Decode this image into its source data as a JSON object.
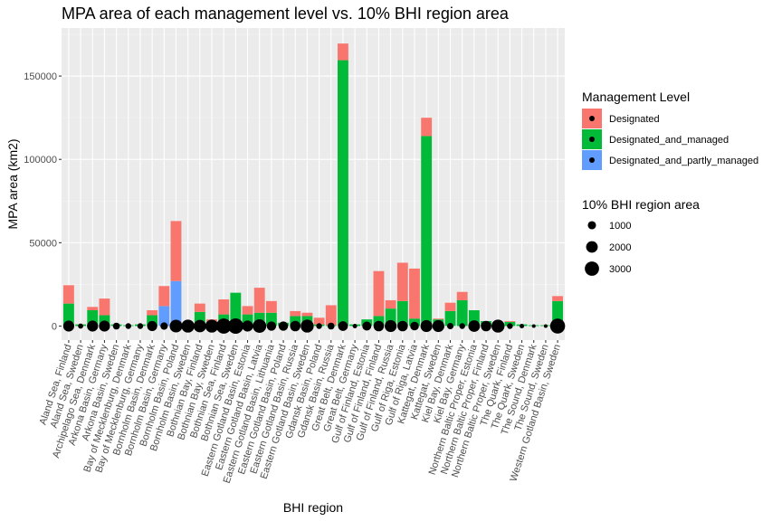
{
  "chart_data": {
    "type": "bar",
    "title": "MPA area of each management level vs. 10% BHI region area",
    "xlabel": "BHI region",
    "ylabel": "MPA area (km2)",
    "ylim": [
      0,
      175000
    ],
    "y_ticks": [
      0,
      50000,
      100000,
      150000
    ],
    "grid": true,
    "stacked": true,
    "legend_position": "right",
    "categories": [
      "Aland Sea, Finland",
      "Aland Sea, Sweden",
      "Archipelago Sea, Denmark",
      "Arkona Basin, Germany",
      "Arkona Basin, Sweden",
      "Bay of Mecklenburg, Denmark",
      "Bay of Mecklenburg, Germany",
      "Bornholm Basin, Denmark",
      "Bornholm Basin, Germany",
      "Bornholm Basin, Poland",
      "Bornholm Basin, Sweden",
      "Bothnian Bay, Finland",
      "Bothnian Bay, Sweden",
      "Bothnian Sea, Finland",
      "Bothnian Sea, Sweden",
      "Eastern Gotland Basin, Estonia",
      "Eastern Gotland Basin, Latvia",
      "Eastern Gotland Basin, Lithuania",
      "Eastern Gotland Basin, Poland",
      "Eastern Gotland Basin, Russia",
      "Eastern Gotland Basin, Sweden",
      "Gdansk Basin, Poland",
      "Gdansk Basin, Russia",
      "Great Belt, Denmark",
      "Great Belt, Germany",
      "Gulf of Finland, Estonia",
      "Gulf of Finland, Finland",
      "Gulf of Finland, Russia",
      "Gulf of Riga, Estonia",
      "Gulf of Riga, Latvia",
      "Kattegat, Denmark",
      "Kattegat, Sweden",
      "Kiel Bay, Denmark",
      "Kiel Bay, Germany",
      "Northern Baltic Proper, Estonia",
      "Northern Baltic Proper, Finland",
      "Northern Baltic Proper, Sweden",
      "The Quark, Finland",
      "The Quark, Sweden",
      "The Sound, Denmark",
      "The Sound, Sweden",
      "Western Gotland Basin, Sweden"
    ],
    "series": [
      {
        "name": "Designated",
        "color": "#F8766D",
        "values": [
          11000,
          0,
          2000,
          10000,
          0,
          0,
          0,
          3000,
          12000,
          36000,
          0,
          5000,
          2000,
          9000,
          0,
          5000,
          15000,
          7000,
          0,
          3000,
          2000,
          4000,
          12000,
          10000,
          0,
          0,
          27000,
          5000,
          23000,
          30000,
          11000,
          500,
          5000,
          5000,
          0,
          0,
          0,
          500,
          0,
          0,
          0,
          3000
        ]
      },
      {
        "name": "Designated_and_managed",
        "color": "#00BA38",
        "values": [
          13500,
          1000,
          9500,
          6500,
          1000,
          500,
          1000,
          6500,
          0,
          0,
          2000,
          8500,
          2000,
          7000,
          20000,
          7000,
          8000,
          8000,
          2000,
          6000,
          6000,
          1000,
          500,
          159500,
          1000,
          4000,
          6000,
          10500,
          15000,
          4500,
          114000,
          4000,
          9000,
          15500,
          9500,
          3000,
          1000,
          2500,
          1000,
          500,
          500,
          15000
        ]
      },
      {
        "name": "Designated_and_partly_managed",
        "color": "#619CFF",
        "values": [
          0,
          0,
          0,
          0,
          0,
          0,
          0,
          0,
          12000,
          27000,
          0,
          0,
          0,
          0,
          0,
          0,
          0,
          0,
          0,
          0,
          0,
          0,
          0,
          0,
          0,
          0,
          0,
          0,
          0,
          0,
          0,
          0,
          0,
          0,
          0,
          0,
          0,
          0,
          0,
          0,
          0,
          0
        ]
      }
    ],
    "points": {
      "name": "10% BHI region area",
      "values": [
        1800,
        400,
        1800,
        1800,
        700,
        500,
        500,
        1500,
        800,
        2400,
        2500,
        2300,
        2500,
        3400,
        3500,
        1800,
        2700,
        1300,
        1300,
        1600,
        2500,
        500,
        700,
        1400,
        300,
        1200,
        1600,
        2100,
        1600,
        1100,
        2100,
        2100,
        600,
        500,
        2000,
        1600,
        2500,
        500,
        300,
        200,
        200,
        3300
      ]
    },
    "legend": {
      "fill_title": "Management Level",
      "fill_items": [
        "Designated",
        "Designated_and_managed",
        "Designated_and_partly_managed"
      ],
      "size_title": "10% BHI region area",
      "size_items": [
        1000,
        2000,
        3000
      ]
    }
  }
}
